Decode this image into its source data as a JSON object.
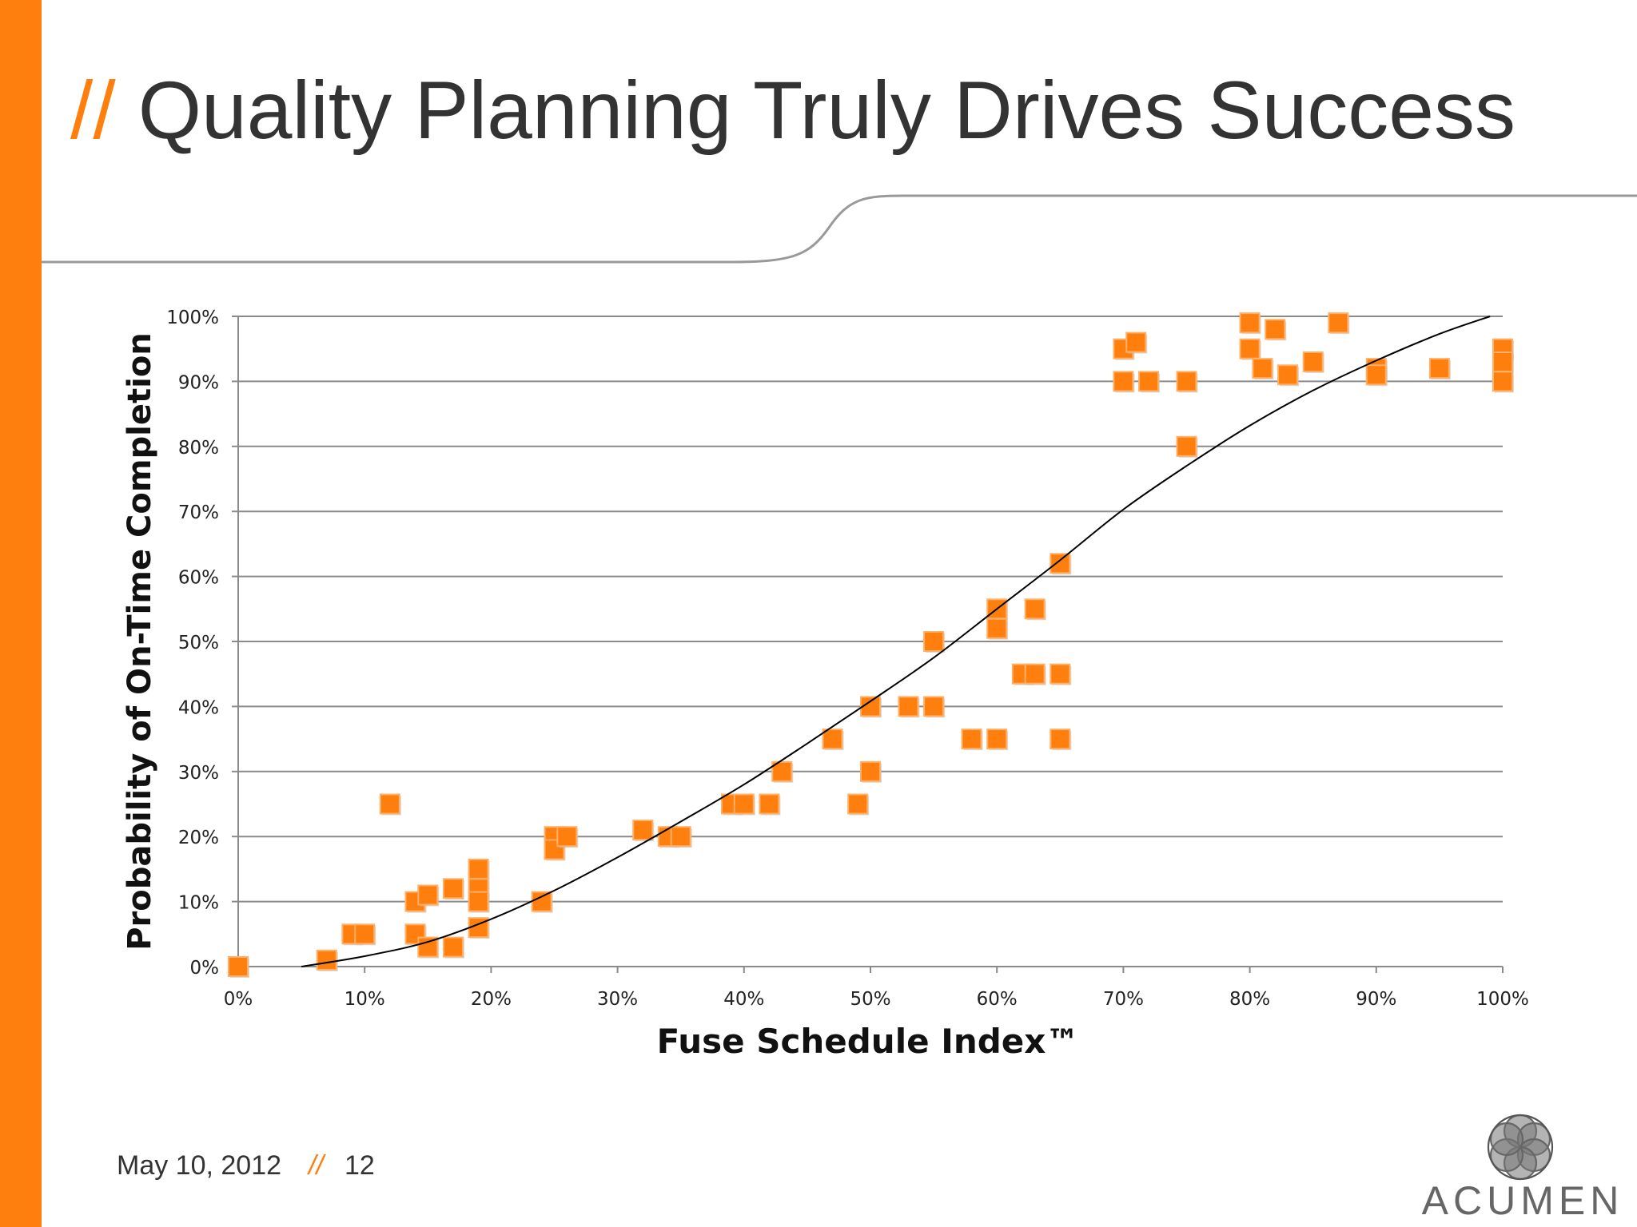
{
  "slide": {
    "title_prefix": "//",
    "title": "Quality Planning Truly Drives Success",
    "footer_date": "May 10, 2012",
    "footer_separator": "//",
    "page_number": "12",
    "logo_text": "ACUMEN",
    "accent_color": "#ff7f0e",
    "text_color": "#333333"
  },
  "chart_data": {
    "type": "scatter",
    "xlabel": "Fuse Schedule Index™",
    "ylabel": "Probability of On-Time Completion",
    "xlim": [
      0,
      100
    ],
    "ylim": [
      0,
      100
    ],
    "x_ticks": [
      "0%",
      "10%",
      "20%",
      "30%",
      "40%",
      "50%",
      "60%",
      "70%",
      "80%",
      "90%",
      "100%"
    ],
    "y_ticks": [
      "0%",
      "10%",
      "20%",
      "30%",
      "40%",
      "50%",
      "60%",
      "70%",
      "80%",
      "90%",
      "100%"
    ],
    "grid": "horizontal",
    "marker_color": "#ff7f0e",
    "points": [
      [
        0,
        0
      ],
      [
        7,
        1
      ],
      [
        9,
        5
      ],
      [
        10,
        5
      ],
      [
        12,
        25
      ],
      [
        14,
        10
      ],
      [
        14,
        5
      ],
      [
        15,
        11
      ],
      [
        15,
        3
      ],
      [
        17,
        12
      ],
      [
        17,
        3
      ],
      [
        19,
        15
      ],
      [
        19,
        12
      ],
      [
        19,
        10
      ],
      [
        19,
        6
      ],
      [
        24,
        10
      ],
      [
        25,
        20
      ],
      [
        25,
        18
      ],
      [
        26,
        20
      ],
      [
        32,
        21
      ],
      [
        34,
        20
      ],
      [
        35,
        20
      ],
      [
        39,
        25
      ],
      [
        40,
        25
      ],
      [
        42,
        25
      ],
      [
        43,
        30
      ],
      [
        47,
        35
      ],
      [
        49,
        25
      ],
      [
        50,
        40
      ],
      [
        50,
        30
      ],
      [
        53,
        40
      ],
      [
        55,
        50
      ],
      [
        55,
        40
      ],
      [
        58,
        35
      ],
      [
        60,
        55
      ],
      [
        60,
        52
      ],
      [
        60,
        35
      ],
      [
        62,
        45
      ],
      [
        63,
        55
      ],
      [
        63,
        45
      ],
      [
        65,
        62
      ],
      [
        65,
        45
      ],
      [
        65,
        35
      ],
      [
        70,
        95
      ],
      [
        70,
        90
      ],
      [
        71,
        96
      ],
      [
        72,
        90
      ],
      [
        75,
        90
      ],
      [
        75,
        80
      ],
      [
        80,
        99
      ],
      [
        80,
        95
      ],
      [
        81,
        92
      ],
      [
        82,
        98
      ],
      [
        83,
        91
      ],
      [
        85,
        93
      ],
      [
        87,
        99
      ],
      [
        90,
        92
      ],
      [
        90,
        91
      ],
      [
        95,
        92
      ],
      [
        100,
        95
      ],
      [
        100,
        93
      ],
      [
        100,
        90
      ]
    ],
    "trendline": {
      "type": "sigmoid",
      "color": "#000000",
      "points": [
        [
          5,
          0
        ],
        [
          10,
          1.6
        ],
        [
          15,
          3.8
        ],
        [
          20,
          7.3
        ],
        [
          25,
          11.7
        ],
        [
          30,
          16.8
        ],
        [
          35,
          22.3
        ],
        [
          40,
          28
        ],
        [
          45,
          34.3
        ],
        [
          50,
          40.8
        ],
        [
          55,
          47.5
        ],
        [
          60,
          55
        ],
        [
          65,
          62.5
        ],
        [
          70,
          70.3
        ],
        [
          75,
          77
        ],
        [
          80,
          83.2
        ],
        [
          85,
          88.6
        ],
        [
          90,
          93.2
        ],
        [
          95,
          97.3
        ],
        [
          99,
          100
        ]
      ]
    }
  }
}
